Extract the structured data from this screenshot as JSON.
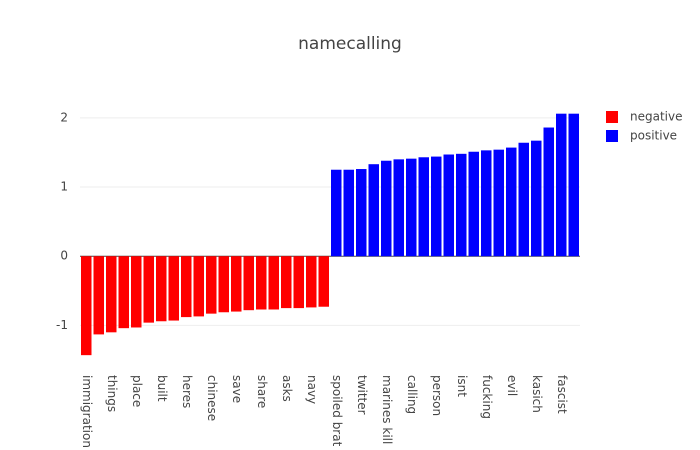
{
  "chart_data": {
    "type": "bar",
    "title": "namecalling",
    "categories": [
      "immigration",
      null,
      "things",
      null,
      "place",
      null,
      "built",
      null,
      "heres",
      null,
      "chinese",
      null,
      "save",
      null,
      "share",
      null,
      "asks",
      null,
      "navy",
      null,
      "spoiled brat",
      null,
      "twitter",
      null,
      "marines kill",
      null,
      "calling",
      null,
      "person",
      null,
      "isnt",
      null,
      "fucking",
      null,
      "evil",
      null,
      "kasich",
      null,
      "fascist",
      null
    ],
    "series": [
      {
        "name": "negative",
        "color": "#ff0000",
        "values": [
          -1.43,
          -1.13,
          -1.1,
          -1.04,
          -1.03,
          -0.96,
          -0.94,
          -0.93,
          -0.88,
          -0.87,
          -0.83,
          -0.81,
          -0.8,
          -0.78,
          -0.77,
          -0.77,
          -0.75,
          -0.75,
          -0.74,
          -0.73,
          null,
          null,
          null,
          null,
          null,
          null,
          null,
          null,
          null,
          null,
          null,
          null,
          null,
          null,
          null,
          null,
          null,
          null,
          null,
          null
        ]
      },
      {
        "name": "positive",
        "color": "#0000ff",
        "values": [
          null,
          null,
          null,
          null,
          null,
          null,
          null,
          null,
          null,
          null,
          null,
          null,
          null,
          null,
          null,
          null,
          null,
          null,
          null,
          null,
          1.25,
          1.25,
          1.26,
          1.33,
          1.38,
          1.4,
          1.41,
          1.43,
          1.44,
          1.47,
          1.48,
          1.51,
          1.53,
          1.54,
          1.57,
          1.64,
          1.67,
          1.86,
          2.06,
          2.06
        ]
      }
    ],
    "ylim": [
      -1.5,
      2.2
    ],
    "yticks": [
      -1,
      0,
      1,
      2
    ],
    "grid": true,
    "legend": "top-right"
  }
}
